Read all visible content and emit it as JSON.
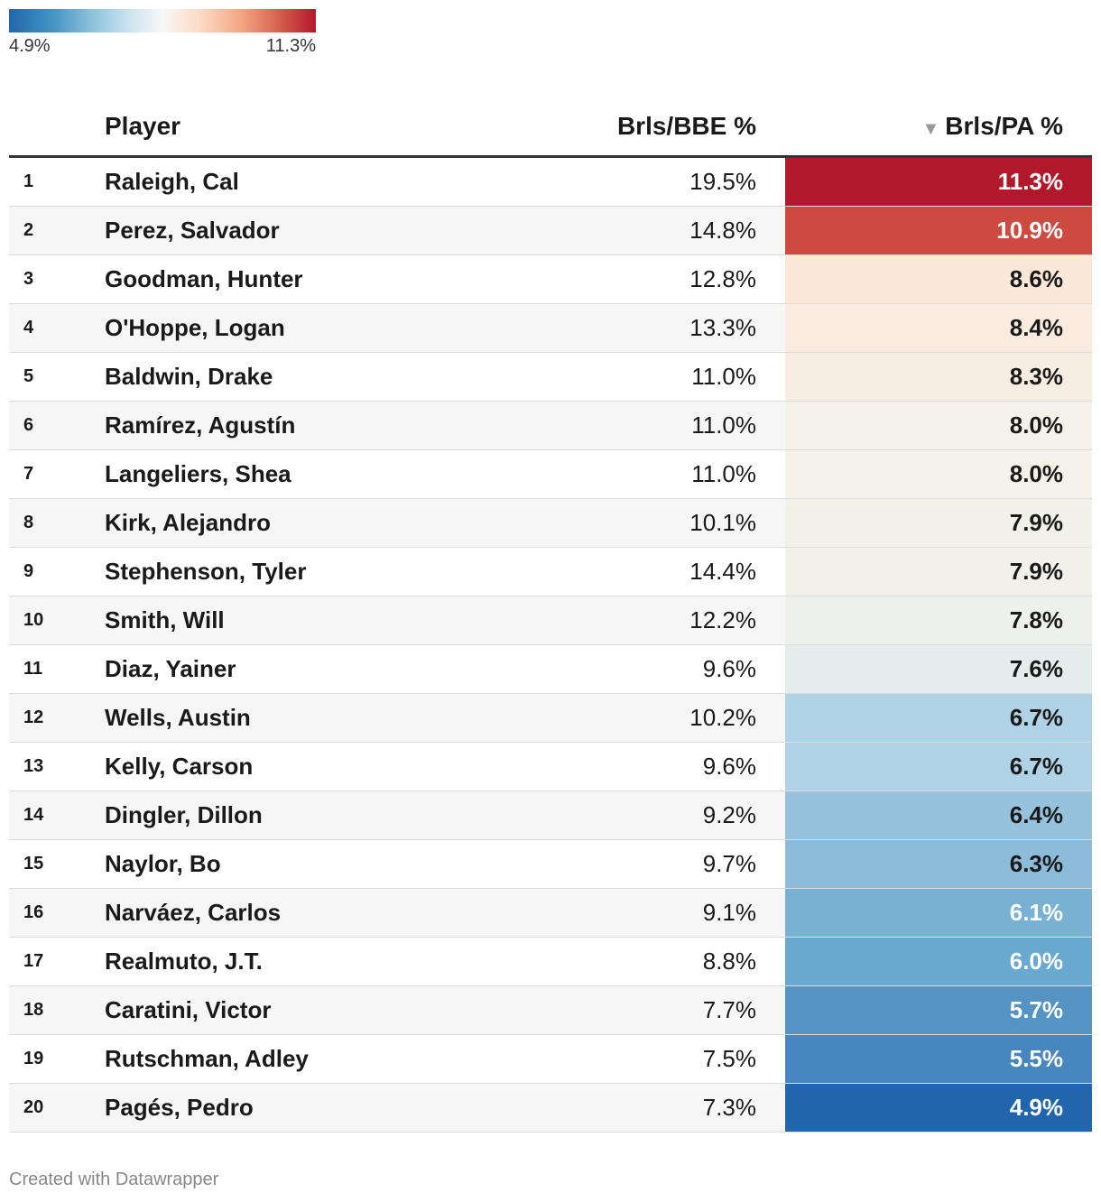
{
  "legend": {
    "min_label": "4.9%",
    "max_label": "11.3%"
  },
  "chart_data": {
    "type": "table",
    "columns": [
      "",
      "Player",
      "Brls/BBE %",
      "Brls/PA %"
    ],
    "sorted_by": "Brls/PA %",
    "sort_order": "descending",
    "color_scale": {
      "column": "Brls/PA %",
      "min": 4.9,
      "max": 11.3,
      "colors": [
        "#2166ac",
        "#f7f7f7",
        "#b2182b"
      ]
    },
    "rows": [
      {
        "rank": "1",
        "player": "Raleigh, Cal",
        "bbe": "19.5%",
        "pa": "11.3%",
        "bg": "#b2182b",
        "fg": "#ffffff"
      },
      {
        "rank": "2",
        "player": "Perez, Salvador",
        "bbe": "14.8%",
        "pa": "10.9%",
        "bg": "#cc4a3f",
        "fg": "#ffffff"
      },
      {
        "rank": "3",
        "player": "Goodman, Hunter",
        "bbe": "12.8%",
        "pa": "8.6%",
        "bg": "#fbe8d9",
        "fg": "#1a1a1a"
      },
      {
        "rank": "4",
        "player": "O'Hoppe, Logan",
        "bbe": "13.3%",
        "pa": "8.4%",
        "bg": "#f9ebdf",
        "fg": "#1a1a1a"
      },
      {
        "rank": "5",
        "player": "Baldwin, Drake",
        "bbe": "11.0%",
        "pa": "8.3%",
        "bg": "#f8ede2",
        "fg": "#1a1a1a"
      },
      {
        "rank": "6",
        "player": "Ramírez, Agustín",
        "bbe": "11.0%",
        "pa": "8.0%",
        "bg": "#f4f1e8",
        "fg": "#1a1a1a"
      },
      {
        "rank": "7",
        "player": "Langeliers, Shea",
        "bbe": "11.0%",
        "pa": "8.0%",
        "bg": "#f4f1e8",
        "fg": "#1a1a1a"
      },
      {
        "rank": "8",
        "player": "Kirk, Alejandro",
        "bbe": "10.1%",
        "pa": "7.9%",
        "bg": "#f1f1ea",
        "fg": "#1a1a1a"
      },
      {
        "rank": "9",
        "player": "Stephenson, Tyler",
        "bbe": "14.4%",
        "pa": "7.9%",
        "bg": "#f1f1ea",
        "fg": "#1a1a1a"
      },
      {
        "rank": "10",
        "player": "Smith, Will",
        "bbe": "12.2%",
        "pa": "7.8%",
        "bg": "#eef0eb",
        "fg": "#1a1a1a"
      },
      {
        "rank": "11",
        "player": "Diaz, Yainer",
        "bbe": "9.6%",
        "pa": "7.6%",
        "bg": "#e5ecec",
        "fg": "#1a1a1a"
      },
      {
        "rank": "12",
        "player": "Wells, Austin",
        "bbe": "10.2%",
        "pa": "6.7%",
        "bg": "#b0d2e6",
        "fg": "#1a1a1a"
      },
      {
        "rank": "13",
        "player": "Kelly, Carson",
        "bbe": "9.6%",
        "pa": "6.7%",
        "bg": "#b0d2e6",
        "fg": "#1a1a1a"
      },
      {
        "rank": "14",
        "player": "Dingler, Dillon",
        "bbe": "9.2%",
        "pa": "6.4%",
        "bg": "#97c2dd",
        "fg": "#1a1a1a"
      },
      {
        "rank": "15",
        "player": "Naylor, Bo",
        "bbe": "9.7%",
        "pa": "6.3%",
        "bg": "#8dbcda",
        "fg": "#1a1a1a"
      },
      {
        "rank": "16",
        "player": "Narváez, Carlos",
        "bbe": "9.1%",
        "pa": "6.1%",
        "bg": "#78b1d4",
        "fg": "#ffffff"
      },
      {
        "rank": "17",
        "player": "Realmuto, J.T.",
        "bbe": "8.8%",
        "pa": "6.0%",
        "bg": "#6aa9cf",
        "fg": "#ffffff"
      },
      {
        "rank": "18",
        "player": "Caratini, Victor",
        "bbe": "7.7%",
        "pa": "5.7%",
        "bg": "#5593c5",
        "fg": "#ffffff"
      },
      {
        "rank": "19",
        "player": "Rutschman, Adley",
        "bbe": "7.5%",
        "pa": "5.5%",
        "bg": "#4786be",
        "fg": "#ffffff"
      },
      {
        "rank": "20",
        "player": "Pagés, Pedro",
        "bbe": "7.3%",
        "pa": "4.9%",
        "bg": "#2166ac",
        "fg": "#ffffff"
      }
    ]
  },
  "footer": "Created with Datawrapper"
}
